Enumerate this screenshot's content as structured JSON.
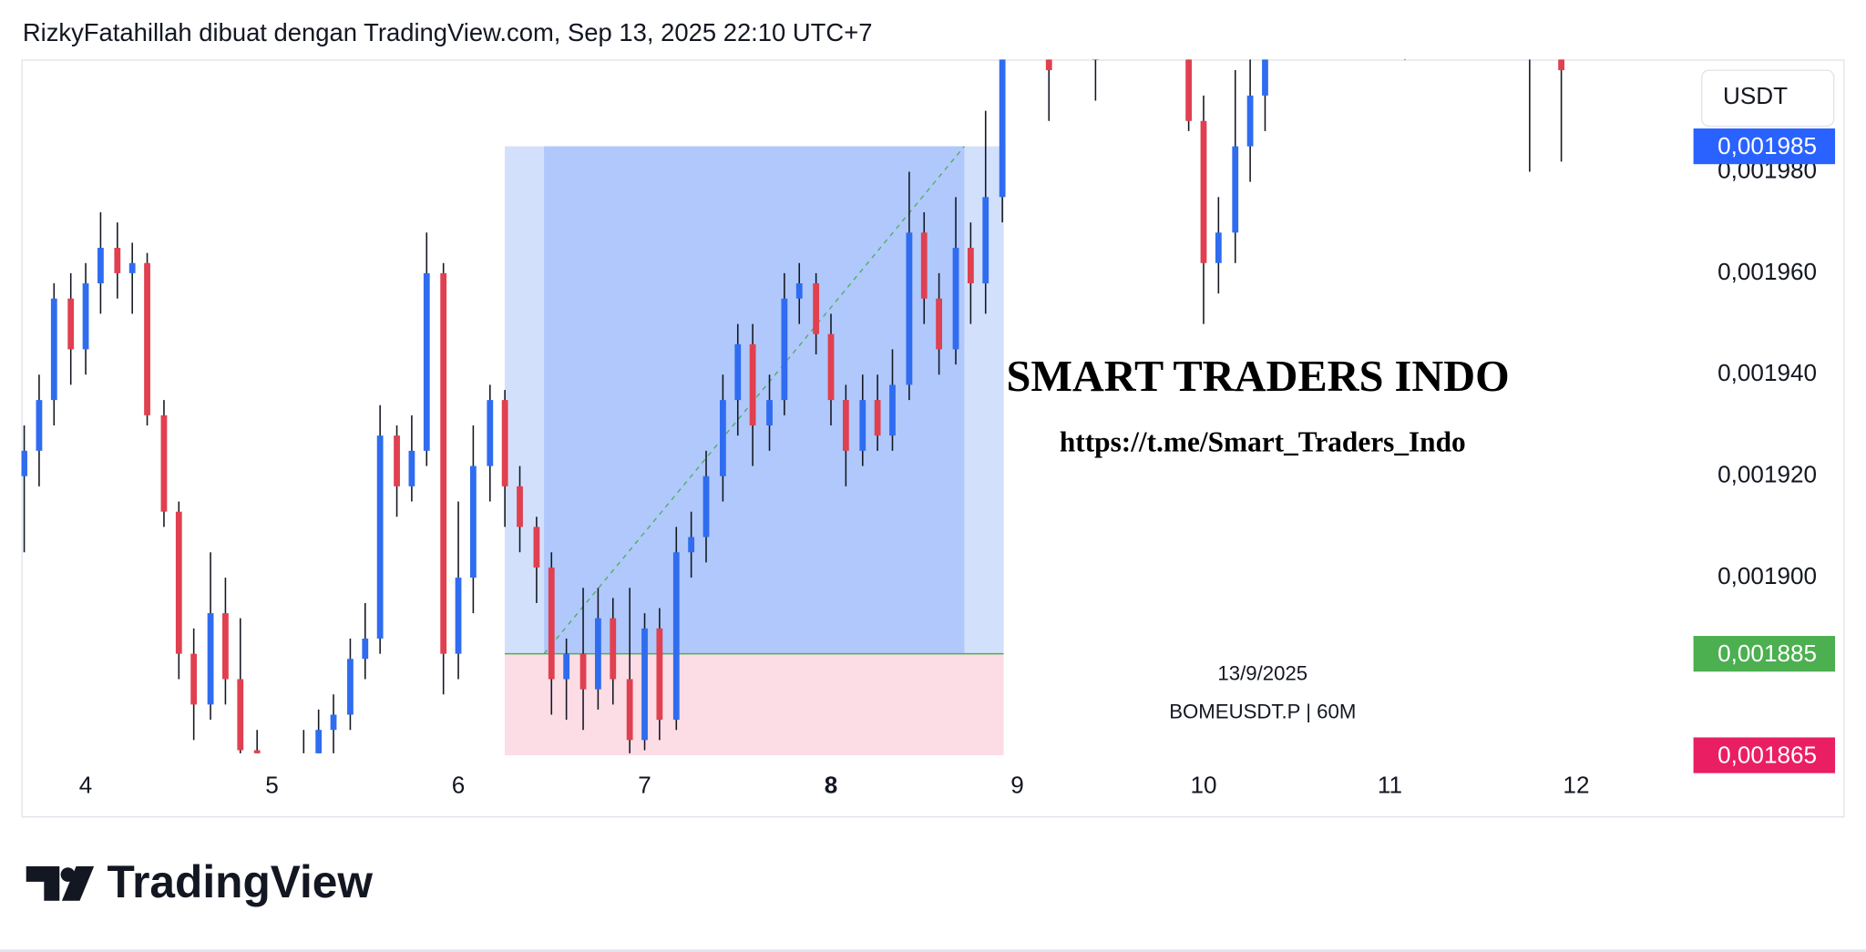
{
  "header": {
    "text": "RizkyFatahillah dibuat dengan TradingView.com, Sep 13, 2025 22:10 UTC+7"
  },
  "currency_button": "USDT",
  "footer_logo": "TradingView",
  "chart_data": {
    "type": "candlestick",
    "watermark": {
      "title": "SMART TRADERS INDO",
      "link": "https://t.me/Smart_Traders_Indo",
      "date": "13/9/2025",
      "symbol": "BOMEUSDT.P | 60M"
    },
    "xlim": [
      3.655,
      12.61
    ],
    "xticks": [
      4,
      5,
      6,
      7,
      8,
      9,
      10,
      11,
      12
    ],
    "ylim": [
      0.0018654,
      0.0020021
    ],
    "yticks": [
      {
        "value": 0.0019,
        "label": "0,001900"
      },
      {
        "value": 0.00192,
        "label": "0,001920"
      },
      {
        "value": 0.00194,
        "label": "0,001940"
      },
      {
        "value": 0.00196,
        "label": "0,001960"
      },
      {
        "value": 0.00198,
        "label": "0,001980"
      }
    ],
    "up_color": "#2f6cf0",
    "down_color": "#e0404f",
    "x": [
      3.67,
      3.75,
      3.83,
      3.92,
      4.0,
      4.08,
      4.17,
      4.25,
      4.33,
      4.42,
      4.5,
      4.58,
      4.67,
      4.75,
      4.83,
      4.92,
      5.0,
      5.08,
      5.17,
      5.25,
      5.33,
      5.42,
      5.5,
      5.58,
      5.67,
      5.75,
      5.83,
      5.92,
      6.0,
      6.08,
      6.17,
      6.25,
      6.33,
      6.42,
      6.5,
      6.58,
      6.67,
      6.75,
      6.83,
      6.92,
      7.0,
      7.08,
      7.17,
      7.25,
      7.33,
      7.42,
      7.5,
      7.58,
      7.67,
      7.75,
      7.83,
      7.92,
      8.0,
      8.08,
      8.17,
      8.25,
      8.33,
      8.42,
      8.5,
      8.58,
      8.67,
      8.75,
      8.83,
      8.92,
      9.17,
      9.42,
      9.92,
      10.0,
      10.08,
      10.17,
      10.25,
      10.33,
      11.08,
      11.75,
      11.92
    ],
    "open": [
      0.00192,
      0.001925,
      0.001935,
      0.001955,
      0.001945,
      0.001958,
      0.001965,
      0.00196,
      0.001962,
      0.001932,
      0.001913,
      0.001885,
      0.001875,
      0.001893,
      0.00188,
      0.001866,
      0.00186,
      0.001858,
      0.001862,
      0.001865,
      0.00187,
      0.001873,
      0.001884,
      0.001888,
      0.001928,
      0.001918,
      0.001925,
      0.00196,
      0.001885,
      0.0019,
      0.001922,
      0.001935,
      0.001918,
      0.00191,
      0.001902,
      0.00188,
      0.001885,
      0.001878,
      0.001892,
      0.00188,
      0.001868,
      0.00189,
      0.001872,
      0.001905,
      0.001908,
      0.00192,
      0.001935,
      0.001946,
      0.00193,
      0.001935,
      0.001955,
      0.001958,
      0.001948,
      0.001935,
      0.001925,
      0.001935,
      0.001928,
      0.001938,
      0.001968,
      0.001955,
      0.001945,
      0.001965,
      0.001958,
      0.001975,
      0.002005,
      0.002004,
      0.00201,
      0.00199,
      0.001962,
      0.001968,
      0.001985,
      0.001995,
      0.002008,
      0.002008,
      0.002006
    ],
    "high": [
      0.00193,
      0.00194,
      0.001958,
      0.00196,
      0.001962,
      0.001972,
      0.00197,
      0.001966,
      0.001964,
      0.001935,
      0.001915,
      0.00189,
      0.001905,
      0.0019,
      0.001892,
      0.00187,
      0.001862,
      0.001865,
      0.00187,
      0.001874,
      0.001877,
      0.001888,
      0.001895,
      0.001934,
      0.00193,
      0.001932,
      0.001968,
      0.001962,
      0.001915,
      0.00193,
      0.001938,
      0.001937,
      0.001922,
      0.001912,
      0.001905,
      0.001888,
      0.001898,
      0.001898,
      0.001896,
      0.001898,
      0.001893,
      0.001894,
      0.00191,
      0.001913,
      0.001925,
      0.00194,
      0.00195,
      0.00195,
      0.00194,
      0.00196,
      0.001962,
      0.00196,
      0.001952,
      0.001938,
      0.00194,
      0.00194,
      0.001945,
      0.00198,
      0.001972,
      0.00196,
      0.001975,
      0.00197,
      0.001992,
      0.002015,
      0.00201,
      0.00201,
      0.002012,
      0.001995,
      0.001975,
      0.002,
      0.002005,
      0.00201,
      0.00201,
      0.00201,
      0.00201
    ],
    "low": [
      0.001905,
      0.001918,
      0.00193,
      0.001938,
      0.00194,
      0.001952,
      0.001955,
      0.001952,
      0.00193,
      0.00191,
      0.00188,
      0.001868,
      0.001872,
      0.001875,
      0.001862,
      0.001855,
      0.00185,
      0.001852,
      0.001856,
      0.001862,
      0.001865,
      0.00187,
      0.00188,
      0.001885,
      0.001912,
      0.001915,
      0.001922,
      0.001877,
      0.00188,
      0.001893,
      0.001915,
      0.00191,
      0.001905,
      0.001895,
      0.001873,
      0.001872,
      0.00187,
      0.001874,
      0.001875,
      0.001865,
      0.001866,
      0.001868,
      0.00187,
      0.0019,
      0.001903,
      0.001915,
      0.001928,
      0.001922,
      0.001925,
      0.001932,
      0.00195,
      0.001944,
      0.00193,
      0.001918,
      0.001922,
      0.001925,
      0.001925,
      0.001935,
      0.00195,
      0.00194,
      0.001942,
      0.00195,
      0.001952,
      0.00197,
      0.00199,
      0.001994,
      0.001988,
      0.00195,
      0.001956,
      0.001962,
      0.001978,
      0.001988,
      0.002002,
      0.00198,
      0.001982
    ],
    "close": [
      0.001925,
      0.001935,
      0.001955,
      0.001945,
      0.001958,
      0.001965,
      0.00196,
      0.001962,
      0.001932,
      0.001913,
      0.001885,
      0.001875,
      0.001893,
      0.00188,
      0.001866,
      0.00186,
      0.001858,
      0.001862,
      0.001865,
      0.00187,
      0.001873,
      0.001884,
      0.001888,
      0.001928,
      0.001918,
      0.001925,
      0.00196,
      0.001885,
      0.0019,
      0.001922,
      0.001935,
      0.001918,
      0.00191,
      0.001902,
      0.00188,
      0.001885,
      0.001878,
      0.001892,
      0.00188,
      0.001868,
      0.00189,
      0.001872,
      0.001905,
      0.001908,
      0.00192,
      0.001935,
      0.001946,
      0.00193,
      0.001935,
      0.001955,
      0.001958,
      0.001948,
      0.001935,
      0.001925,
      0.001935,
      0.001928,
      0.001938,
      0.001968,
      0.001955,
      0.001945,
      0.001965,
      0.001958,
      0.001975,
      0.00201,
      0.002,
      0.002002,
      0.00199,
      0.001962,
      0.001968,
      0.001985,
      0.001995,
      0.002003,
      0.002006,
      0.002005,
      0.002
    ],
    "position": {
      "x_start": 6.249,
      "x_end": 8.927,
      "filled_start": 6.46,
      "filled_end": 8.716,
      "entry": 0.001885,
      "target": 0.001985,
      "stop": 0.001865
    },
    "price_labels": {
      "values": [
        0.001985,
        0.001885,
        0.001865
      ],
      "value_labels": [
        "0,001985",
        "0,001885",
        "0,001865"
      ],
      "colors": [
        "#2962ff",
        "#4caf50",
        "#e91e63"
      ]
    }
  }
}
